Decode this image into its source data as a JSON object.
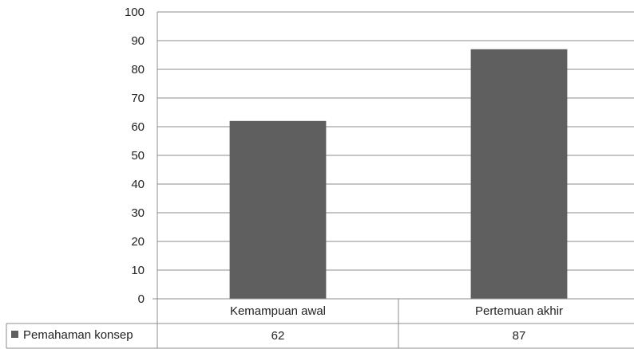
{
  "chart_data": {
    "type": "bar",
    "categories": [
      "Kemampuan awal",
      "Pertemuan akhir"
    ],
    "series": [
      {
        "name": "Pemahaman konsep",
        "values": [
          62,
          87
        ],
        "color": "#5f5f5f"
      }
    ],
    "y_ticks": [
      "0",
      "10",
      "20",
      "30",
      "40",
      "50",
      "60",
      "70",
      "80",
      "90",
      "100"
    ],
    "ylim": [
      0,
      100
    ],
    "grid": true,
    "legend": "data-table-left",
    "data_table": {
      "series_label": "Pemahaman konsep",
      "values": [
        "62",
        "87"
      ]
    },
    "colors": {
      "bar": "#5f5f5f",
      "gridline": "#8c8c8c",
      "text": "#222222"
    }
  }
}
